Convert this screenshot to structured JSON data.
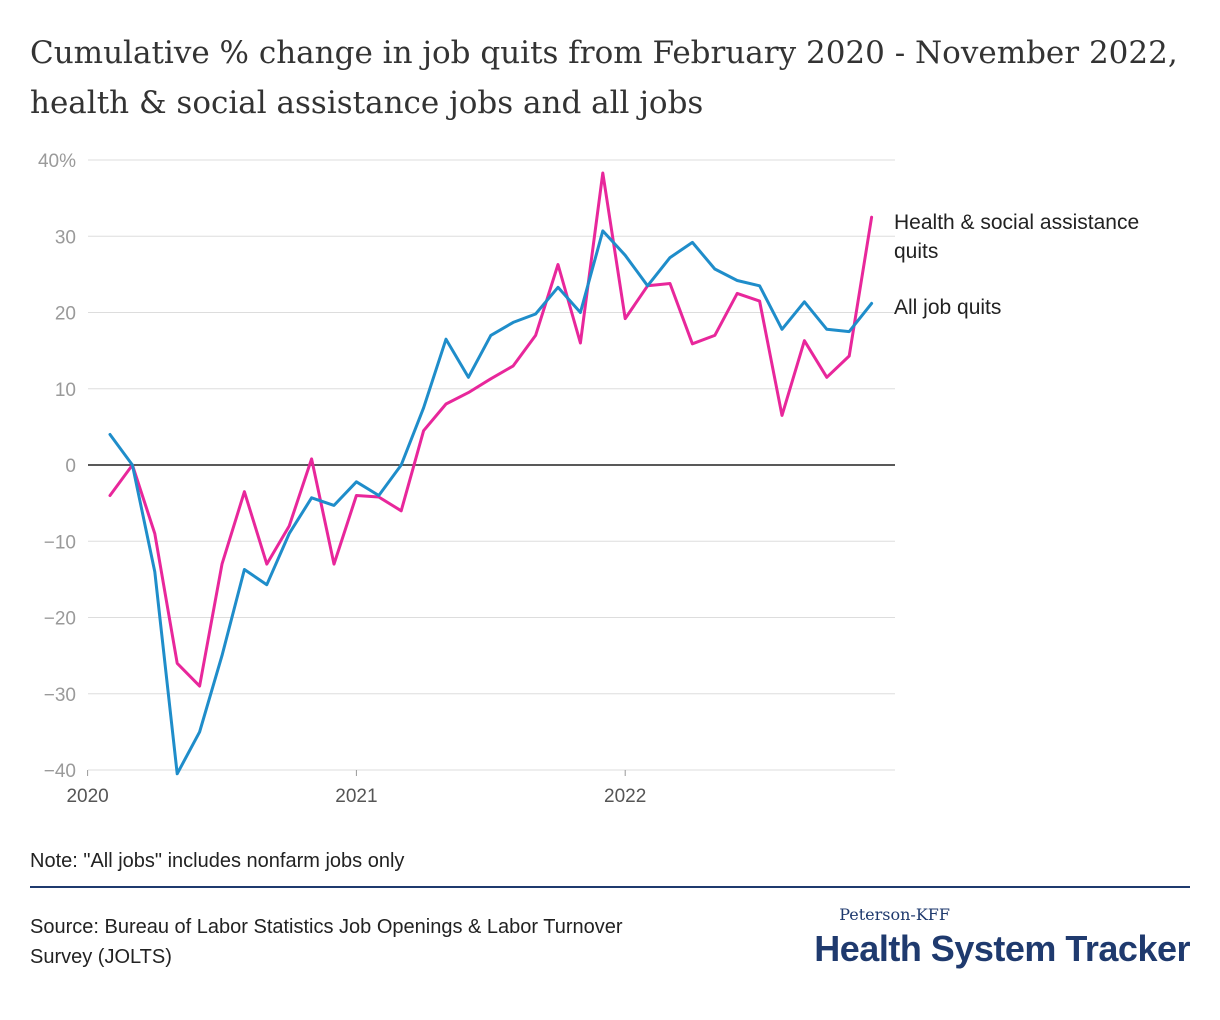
{
  "title": "Cumulative % change in job quits from February 2020 - November 2022, health & social assistance jobs and all jobs",
  "note": "Note: \"All jobs\" includes nonfarm jobs only",
  "source": "Source: Bureau of Labor Statistics Job Openings & Labor Turnover Survey (JOLTS)",
  "brand": {
    "small": "Peterson-KFF",
    "big": "Health System Tracker"
  },
  "colors": {
    "health": "#e8279b",
    "all": "#1f8dca",
    "grid": "#dddddd",
    "zero": "#222222"
  },
  "chart_data": {
    "type": "line",
    "y_tick_labels": [
      "40%",
      "30",
      "20",
      "10",
      "0",
      "−10",
      "−20",
      "−30",
      "−40"
    ],
    "x_tick_labels": [
      "2020",
      "2021",
      "2022"
    ],
    "ylim": [
      -40,
      40
    ],
    "grid": true,
    "series": [
      {
        "name": "Health & social assistance quits",
        "label_lines": [
          "Health & social assistance",
          "quits"
        ],
        "color": "#e8279b",
        "values": [
          -4,
          0,
          -9,
          -26,
          -29,
          -13,
          -3.5,
          -13,
          -8,
          0.8,
          -13,
          -4,
          -4.2,
          -6,
          4.5,
          8,
          9.5,
          11.3,
          13,
          17,
          26.3,
          16,
          38.3,
          19.2,
          23.5,
          23.8,
          15.9,
          17,
          22.5,
          21.5,
          6.5,
          16.3,
          11.5,
          14.3,
          32.5
        ]
      },
      {
        "name": "All job quits",
        "label_lines": [
          "All job quits"
        ],
        "color": "#1f8dca",
        "values": [
          4,
          0,
          -14,
          -40.5,
          -35,
          -25,
          -13.7,
          -15.7,
          -9,
          -4.3,
          -5.3,
          -2.2,
          -4,
          0,
          7.5,
          16.5,
          11.5,
          17,
          18.7,
          19.8,
          23.3,
          20,
          30.7,
          27.5,
          23.5,
          27.2,
          29.2,
          25.7,
          24.2,
          23.5,
          17.8,
          21.4,
          17.8,
          17.5,
          21.2
        ]
      }
    ]
  }
}
